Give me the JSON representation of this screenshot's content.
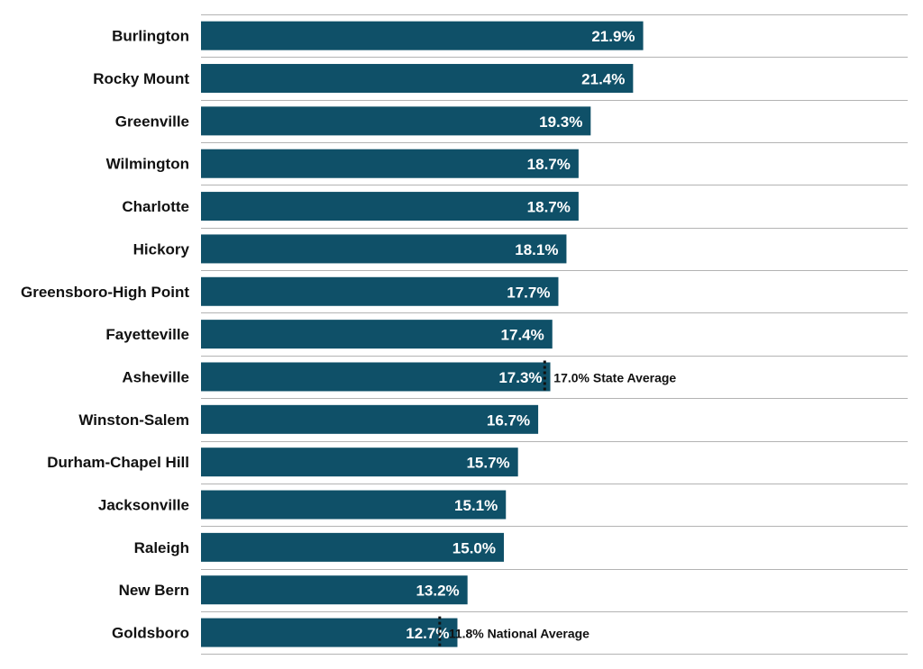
{
  "chart_data": {
    "type": "bar",
    "orientation": "horizontal",
    "categories": [
      "Burlington",
      "Rocky Mount",
      "Greenville",
      "Wilmington",
      "Charlotte",
      "Hickory",
      "Greensboro-High Point",
      "Fayetteville",
      "Asheville",
      "Winston-Salem",
      "Durham-Chapel Hill",
      "Jacksonville",
      "Raleigh",
      "New Bern",
      "Goldsboro"
    ],
    "values": [
      21.9,
      21.4,
      19.3,
      18.7,
      18.7,
      18.1,
      17.7,
      17.4,
      17.3,
      16.7,
      15.7,
      15.1,
      15.0,
      13.2,
      12.7
    ],
    "value_labels": [
      "21.9%",
      "21.4%",
      "19.3%",
      "18.7%",
      "18.7%",
      "18.1%",
      "17.7%",
      "17.4%",
      "17.3%",
      "16.7%",
      "15.7%",
      "15.1%",
      "15.0%",
      "13.2%",
      "12.7%"
    ],
    "xlim": [
      0,
      35
    ],
    "bar_color": "#0f5068",
    "grid": "horizontal row separators",
    "reference_lines": [
      {
        "value": 17.0,
        "label": "17.0% State Average",
        "beside_category": "Asheville"
      },
      {
        "value": 11.8,
        "label": "11.8% National Average",
        "beside_category": "Goldsboro"
      }
    ],
    "title": "",
    "xlabel": "",
    "ylabel": ""
  }
}
